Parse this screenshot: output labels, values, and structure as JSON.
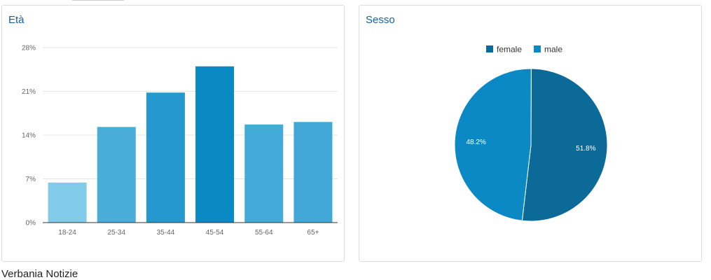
{
  "age_card": {
    "title": "Età"
  },
  "sex_card": {
    "title": "Sesso"
  },
  "footer": {
    "text": "Verbania Notizie"
  },
  "chart_data": [
    {
      "type": "bar",
      "title": "Età",
      "categories": [
        "18-24",
        "25-34",
        "35-44",
        "45-54",
        "55-64",
        "65+"
      ],
      "values": [
        6.4,
        15.3,
        20.8,
        25.0,
        15.7,
        16.1
      ],
      "unit": "%",
      "ylim": [
        0,
        28
      ],
      "yticks": [
        0,
        7,
        14,
        21,
        28
      ],
      "ytick_labels": [
        "0%",
        "7%",
        "14%",
        "21%",
        "28%"
      ],
      "grid": true,
      "bar_colors": [
        "#82cbe9",
        "#49acd9",
        "#2599cf",
        "#0a89c5",
        "#44aad8",
        "#41a8d7"
      ]
    },
    {
      "type": "pie",
      "title": "Sesso",
      "legend_position": "top",
      "slices": [
        {
          "label": "female",
          "value": 51.8,
          "display": "51.8%",
          "color": "#0c6a99"
        },
        {
          "label": "male",
          "value": 48.2,
          "display": "48.2%",
          "color": "#0a89c5"
        }
      ]
    }
  ]
}
